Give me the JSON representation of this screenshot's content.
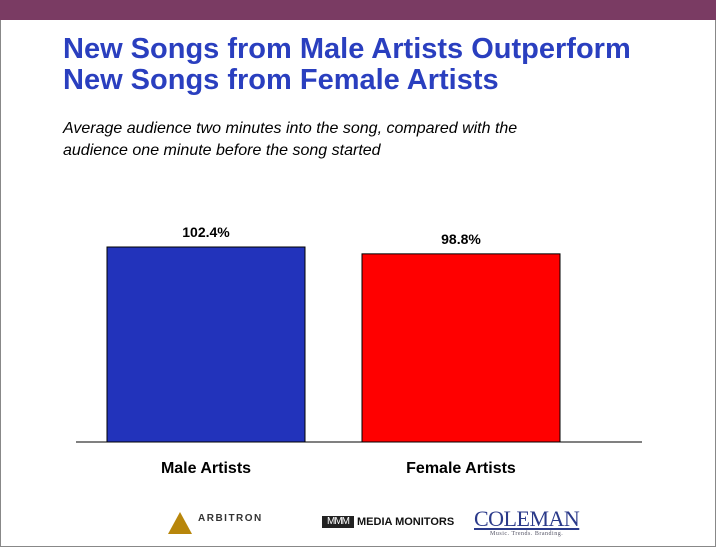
{
  "title_lines": [
    "New Songs from Male Artists Outperform",
    "New Songs from Female Artists"
  ],
  "subtitle_lines": [
    "Average audience two minutes into the song, compared with the",
    "audience one minute before the song started"
  ],
  "colors": {
    "accent_band": "#7a3b63",
    "title": "#2a3fbf",
    "male_bar": "#2233bb",
    "female_bar": "#ff0000"
  },
  "chart_data": {
    "type": "bar",
    "title": "New Songs from Male Artists Outperform New Songs from Female Artists",
    "subtitle": "Average audience two minutes into the song, compared with the audience one minute before the song started",
    "categories": [
      "Male Artists",
      "Female Artists"
    ],
    "values": [
      102.4,
      98.8
    ],
    "value_labels": [
      "102.4%",
      "98.8%"
    ],
    "bar_colors": [
      "#2233bb",
      "#ff0000"
    ],
    "xlabel": "",
    "ylabel": "",
    "grid": false,
    "ylim": [
      0,
      102.4
    ]
  },
  "logos": {
    "arbitron": "ARBITRON",
    "media_monitors": "MEDIA MONITORS",
    "media_monitors_mark": "ΜΜΜ",
    "coleman": "COLEMAN",
    "coleman_sub": "Music. Trends. Branding."
  }
}
